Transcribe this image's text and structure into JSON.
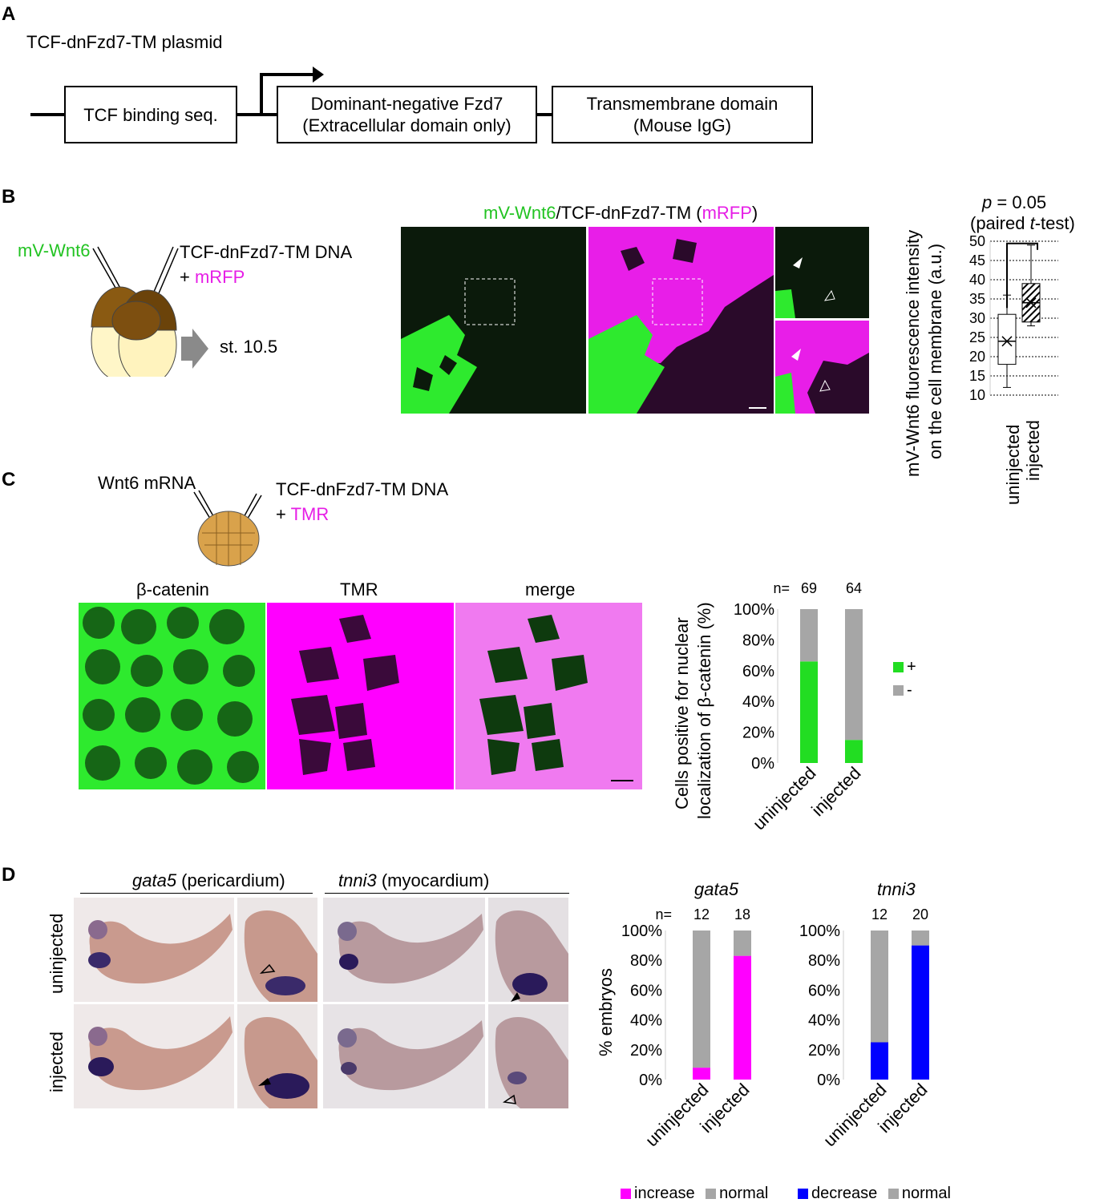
{
  "panels": {
    "a": {
      "label": "A",
      "title": "TCF-dnFzd7-TM plasmid",
      "box1": "TCF binding seq.",
      "box2_line1": "Dominant-negative Fzd7",
      "box2_line2": "(Extracellular domain only)",
      "box3_line1": "Transmembrane domain",
      "box3_line2": "(Mouse IgG)"
    },
    "b": {
      "label": "B",
      "inj_left": "mV-Wnt6",
      "inj_right": "TCF-dnFzd7-TM DNA",
      "inj_right_plus": "+ ",
      "inj_right_tracer": "mRFP",
      "stage": "st. 10.5",
      "image_title_part1": "mV-Wnt6",
      "image_title_part2": "/TCF-dnFzd7-TM (",
      "image_title_part3": "mRFP",
      "image_title_part4": ")",
      "stat_p": "p",
      "stat_value": " = 0.05",
      "stat_test_open": "(paired ",
      "stat_test_t": "t",
      "stat_test_close": "-test)",
      "ylabel_line1": "mV-Wnt6 fluorescence intensity",
      "ylabel_line2": "on the cell membrane (a.u.)",
      "xcat1": "uninjected",
      "xcat2": "injected"
    },
    "c": {
      "label": "C",
      "inj_left": "Wnt6 mRNA",
      "inj_right": "TCF-dnFzd7-TM DNA",
      "inj_right_plus": "+ ",
      "inj_right_tracer": "TMR",
      "img1_title": "β-catenin",
      "img2_title": "TMR",
      "img3_title": "merge",
      "ylabel_line1": "Cells positive for nuclear",
      "ylabel_line2": "localization of β-catenin (%)",
      "n_label": "n=",
      "legend_plus": "+",
      "legend_minus": "-"
    },
    "d": {
      "label": "D",
      "gene1": "gata5",
      "gene1_desc": " (pericardium)",
      "gene2": "tnni3",
      "gene2_desc": " (myocardium)",
      "row1": "uninjected",
      "row2": "injected",
      "chart1_title": "gata5",
      "chart2_title": "tnni3",
      "ylabel": "% embryos",
      "n_label": "n=",
      "legend1_a": "increase",
      "legend1_b": "normal",
      "legend2_a": "decrease",
      "legend2_b": "normal"
    }
  },
  "colors": {
    "green": "#22dd22",
    "magenta": "#ff00ff",
    "blue": "#0000ff",
    "gray": "#a6a6a6"
  },
  "chart_data": [
    {
      "type": "box",
      "title": "",
      "xlabel": "",
      "ylabel": "mV-Wnt6 fluorescence intensity on the cell membrane (a.u.)",
      "categories": [
        "uninjected",
        "injected"
      ],
      "ylim": [
        10,
        50
      ],
      "yticks": [
        10,
        15,
        20,
        25,
        30,
        35,
        40,
        45,
        50
      ],
      "boxes": [
        {
          "name": "uninjected",
          "min": 12,
          "q1": 18,
          "median": 24,
          "mean": 24,
          "q3": 31,
          "max": 36
        },
        {
          "name": "injected",
          "min": 28,
          "q1": 29,
          "median": 34,
          "mean": 34,
          "q3": 39,
          "max": 49
        }
      ],
      "annotation": "p = 0.05 (paired t-test)"
    },
    {
      "type": "bar",
      "stacked": true,
      "title": "",
      "ylabel": "Cells positive for nuclear localization of β-catenin (%)",
      "categories": [
        "uninjected",
        "injected"
      ],
      "n": [
        69,
        64
      ],
      "ylim": [
        0,
        100
      ],
      "yticks": [
        "0%",
        "20%",
        "40%",
        "60%",
        "80%",
        "100%"
      ],
      "series": [
        {
          "name": "+",
          "values": [
            66,
            15
          ]
        },
        {
          "name": "-",
          "values": [
            34,
            85
          ]
        }
      ],
      "legend": "right"
    },
    {
      "type": "bar",
      "stacked": true,
      "title": "gata5",
      "ylabel": "% embryos",
      "categories": [
        "uninjected",
        "injected"
      ],
      "n": [
        12,
        18
      ],
      "ylim": [
        0,
        100
      ],
      "yticks": [
        "0%",
        "20%",
        "40%",
        "60%",
        "80%",
        "100%"
      ],
      "series": [
        {
          "name": "increase",
          "values": [
            8,
            83
          ]
        },
        {
          "name": "normal",
          "values": [
            92,
            17
          ]
        }
      ],
      "legend": "bottom"
    },
    {
      "type": "bar",
      "stacked": true,
      "title": "tnni3",
      "ylabel": "% embryos",
      "categories": [
        "uninjected",
        "injected"
      ],
      "n": [
        12,
        20
      ],
      "ylim": [
        0,
        100
      ],
      "yticks": [
        "0%",
        "20%",
        "40%",
        "60%",
        "80%",
        "100%"
      ],
      "series": [
        {
          "name": "decrease",
          "values": [
            25,
            90
          ]
        },
        {
          "name": "normal",
          "values": [
            75,
            10
          ]
        }
      ],
      "legend": "bottom"
    }
  ]
}
